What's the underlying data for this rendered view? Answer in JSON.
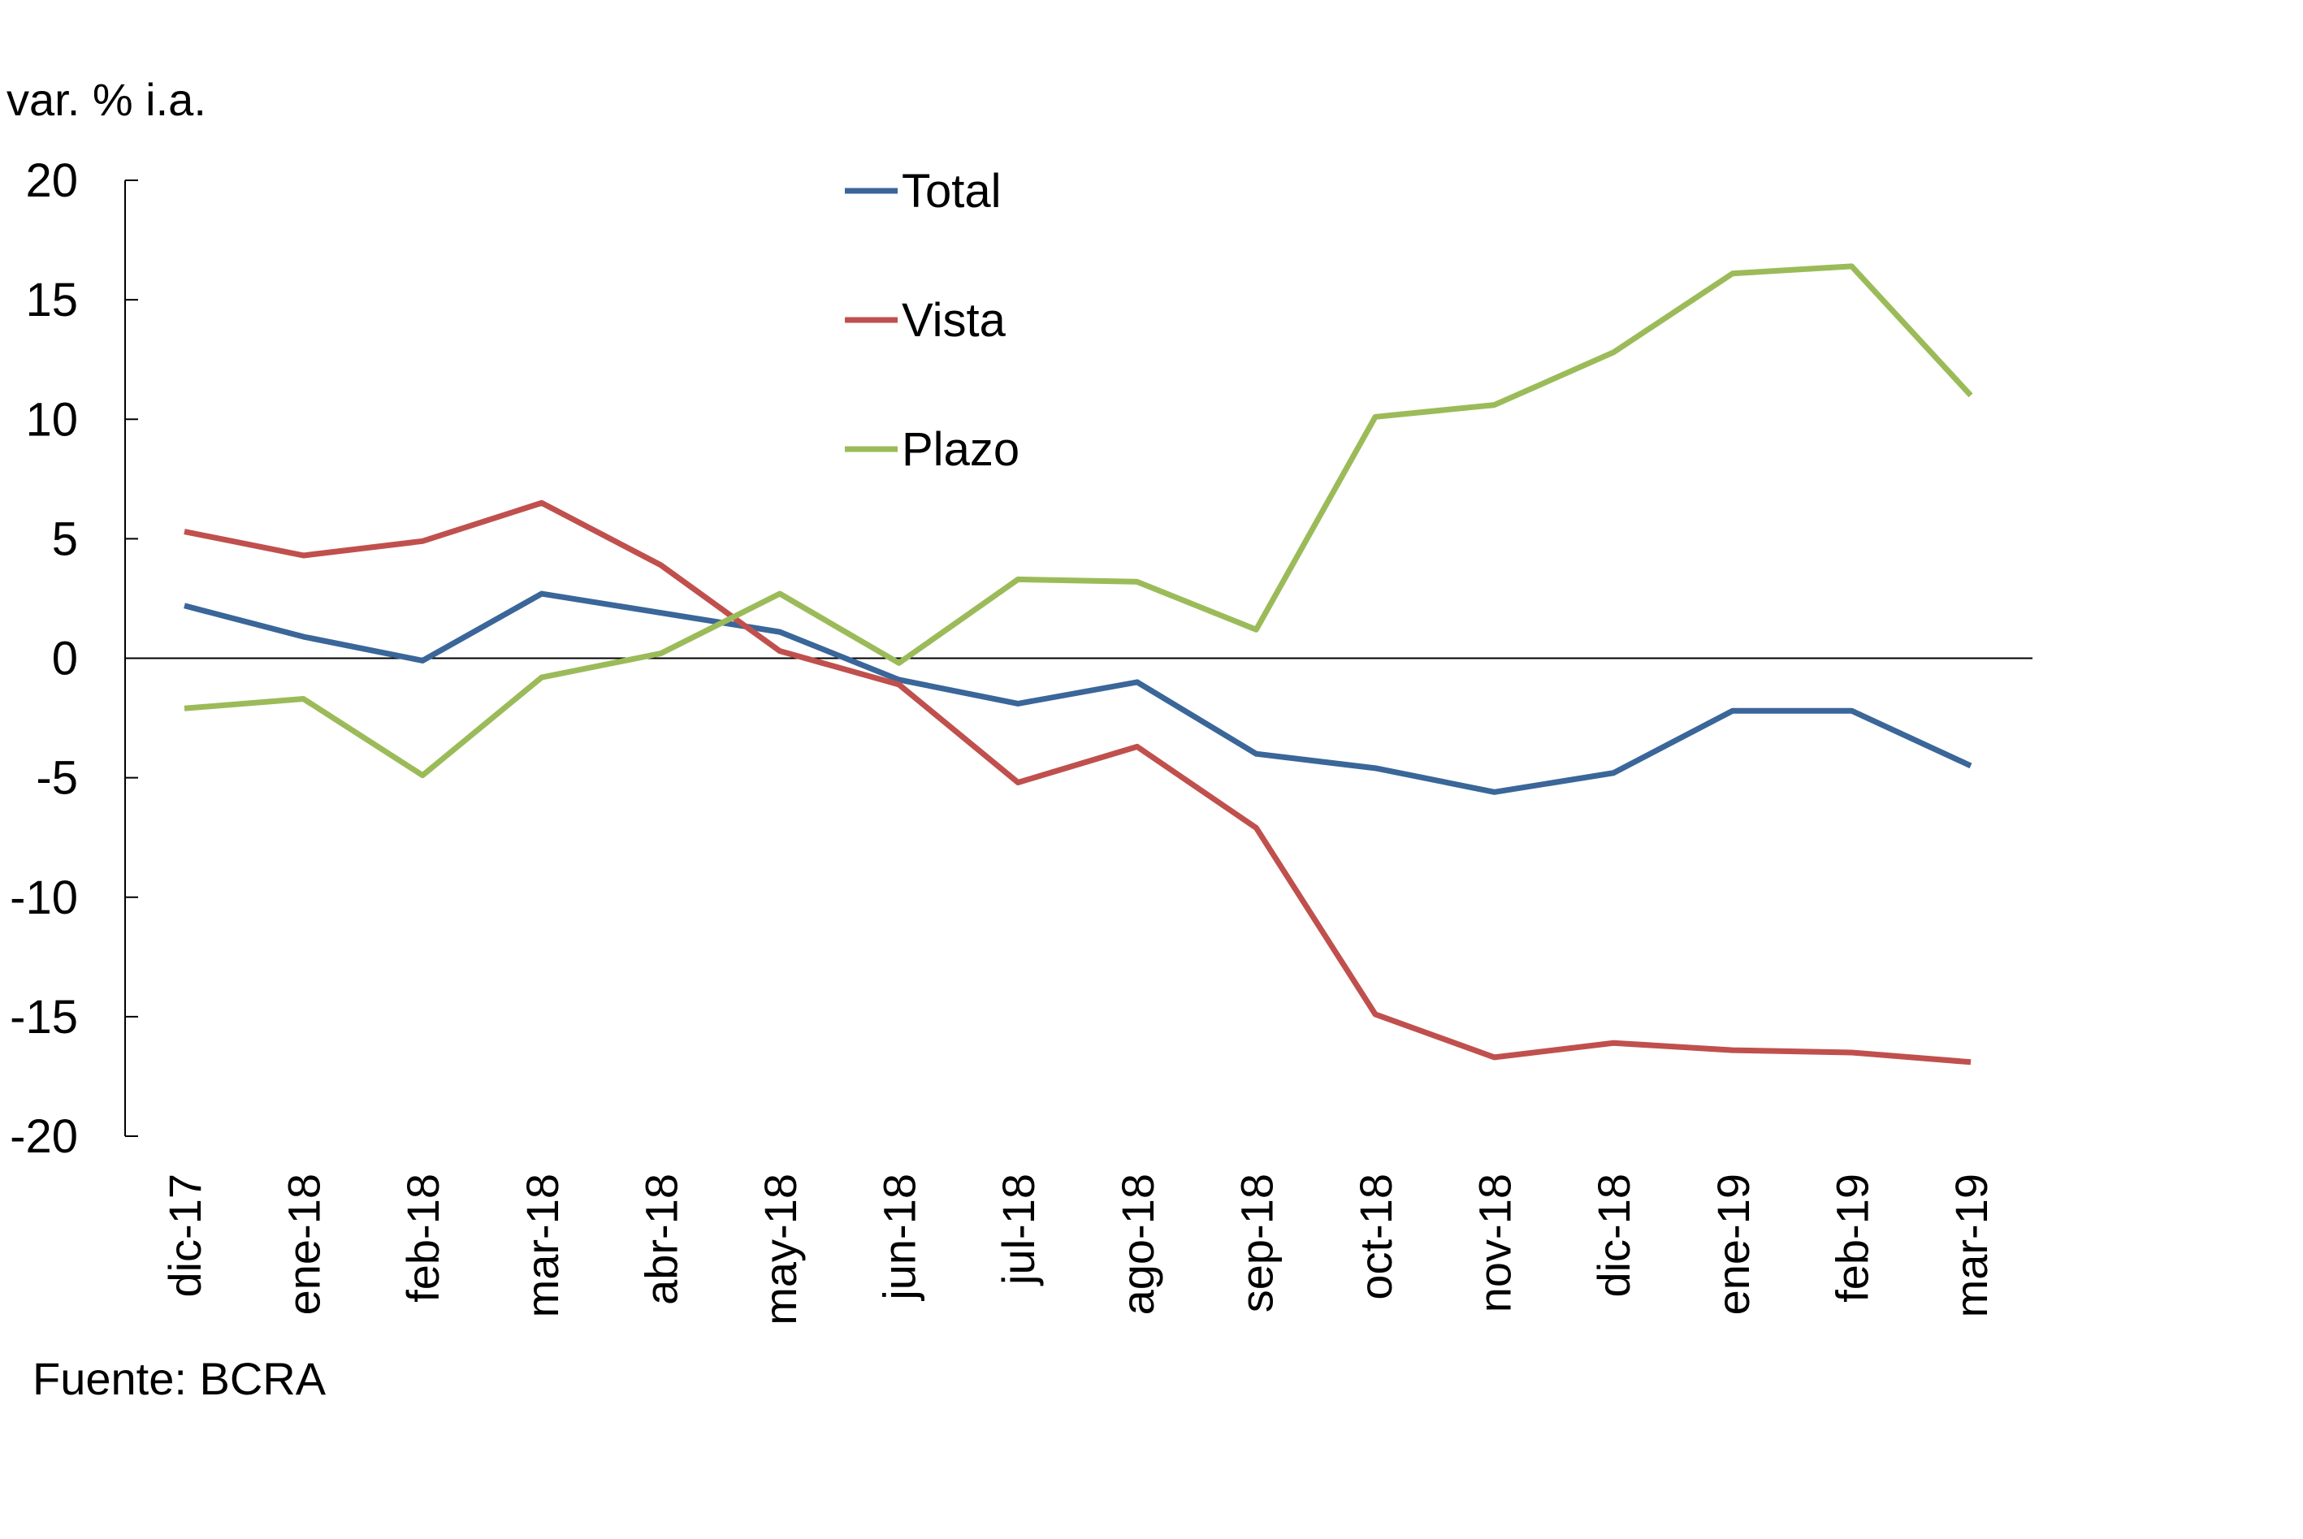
{
  "chart_data": {
    "type": "line",
    "ylabel": "var. % i.a.",
    "source": "Fuente: BCRA",
    "ylim": [
      -20,
      20
    ],
    "yticks": [
      20,
      15,
      10,
      5,
      0,
      -5,
      -10,
      -15,
      -20
    ],
    "categories": [
      "dic-17",
      "ene-18",
      "feb-18",
      "mar-18",
      "abr-18",
      "may-18",
      "jun-18",
      "jul-18",
      "ago-18",
      "sep-18",
      "oct-18",
      "nov-18",
      "dic-18",
      "ene-19",
      "feb-19",
      "mar-19"
    ],
    "legend_position": "top-center",
    "grid": false,
    "series": [
      {
        "name": "Total",
        "color": "#3A6699",
        "values": [
          2.2,
          0.9,
          -0.1,
          2.7,
          1.9,
          1.1,
          -0.9,
          -1.9,
          -1.0,
          -4.0,
          -4.6,
          -5.6,
          -4.8,
          -2.2,
          -2.2,
          -4.5
        ]
      },
      {
        "name": "Vista",
        "color": "#C0504D",
        "values": [
          5.3,
          4.3,
          4.9,
          6.5,
          3.9,
          0.3,
          -1.1,
          -5.2,
          -3.7,
          -7.1,
          -14.9,
          -16.7,
          -16.1,
          -16.4,
          -16.5,
          -16.9
        ]
      },
      {
        "name": "Plazo",
        "color": "#9BBB59",
        "values": [
          -2.1,
          -1.7,
          -4.9,
          -0.8,
          0.2,
          2.7,
          -0.2,
          3.3,
          3.2,
          1.2,
          10.1,
          10.6,
          12.8,
          16.1,
          16.4,
          11.0
        ]
      }
    ]
  }
}
